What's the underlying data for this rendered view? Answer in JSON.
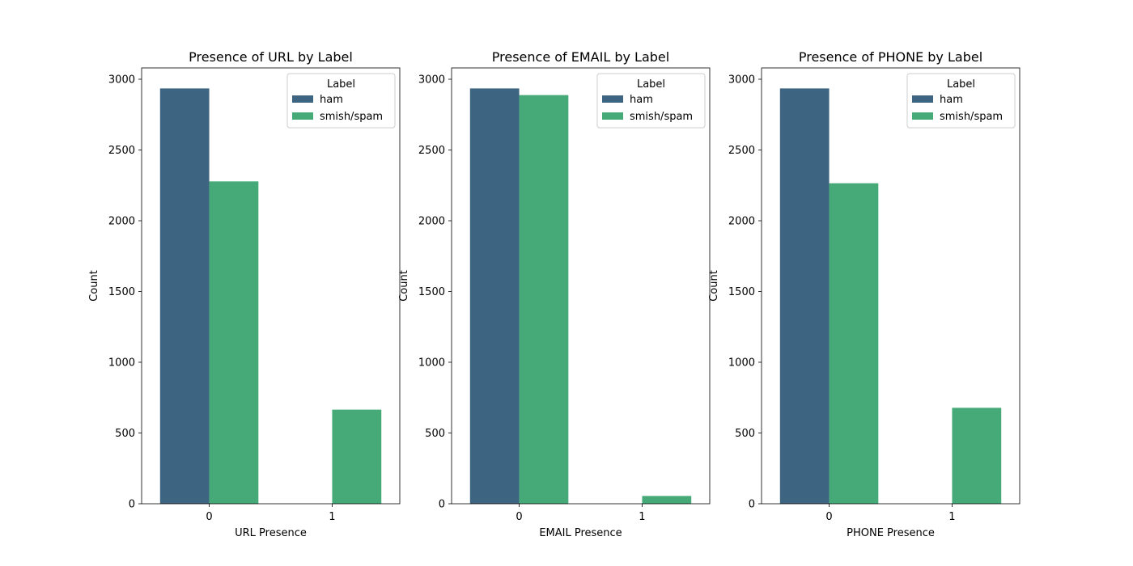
{
  "colors": {
    "ham": "#3d6480",
    "smish_spam": "#45a978",
    "axis": "#000000",
    "legend_border": "#cccccc"
  },
  "chart_data": [
    {
      "type": "bar",
      "title": "Presence of URL by Label",
      "xlabel": "URL Presence",
      "ylabel": "Count",
      "categories": [
        "0",
        "1"
      ],
      "ylim": [
        0,
        3080
      ],
      "yticks": [
        0,
        500,
        1000,
        1500,
        2000,
        2500,
        3000
      ],
      "legend": {
        "title": "Label",
        "placement": "top-right"
      },
      "series": [
        {
          "name": "ham",
          "values": [
            2935,
            0
          ]
        },
        {
          "name": "smish/spam",
          "values": [
            2278,
            665
          ]
        }
      ]
    },
    {
      "type": "bar",
      "title": "Presence of EMAIL by Label",
      "xlabel": "EMAIL Presence",
      "ylabel": "Count",
      "categories": [
        "0",
        "1"
      ],
      "ylim": [
        0,
        3080
      ],
      "yticks": [
        0,
        500,
        1000,
        1500,
        2000,
        2500,
        3000
      ],
      "legend": {
        "title": "Label",
        "placement": "top-right"
      },
      "series": [
        {
          "name": "ham",
          "values": [
            2935,
            0
          ]
        },
        {
          "name": "smish/spam",
          "values": [
            2888,
            55
          ]
        }
      ]
    },
    {
      "type": "bar",
      "title": "Presence of PHONE by Label",
      "xlabel": "PHONE Presence",
      "ylabel": "Count",
      "categories": [
        "0",
        "1"
      ],
      "ylim": [
        0,
        3080
      ],
      "yticks": [
        0,
        500,
        1000,
        1500,
        2000,
        2500,
        3000
      ],
      "legend": {
        "title": "Label",
        "placement": "top-right"
      },
      "series": [
        {
          "name": "ham",
          "values": [
            2935,
            0
          ]
        },
        {
          "name": "smish/spam",
          "values": [
            2265,
            678
          ]
        }
      ]
    }
  ]
}
